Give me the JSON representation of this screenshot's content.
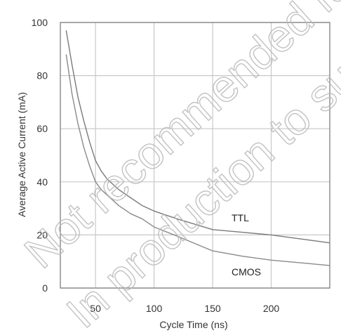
{
  "chart_data": {
    "type": "line",
    "xlabel": "Cycle Time (ns)",
    "ylabel": "Average Active Current (mA)",
    "xlim": [
      20,
      250
    ],
    "ylim": [
      0,
      100
    ],
    "x_ticks": [
      50,
      100,
      150,
      200
    ],
    "y_ticks": [
      0,
      20,
      40,
      60,
      80,
      100
    ],
    "grid": true,
    "series": [
      {
        "name": "TTL",
        "x": [
          25,
          30,
          35,
          40,
          45,
          50,
          55,
          60,
          70,
          80,
          90,
          100,
          120,
          150,
          175,
          200,
          225,
          250
        ],
        "y": [
          97,
          84,
          72,
          63,
          55,
          48,
          44,
          41,
          37,
          34,
          31,
          29,
          26,
          22,
          21,
          20,
          18.5,
          17
        ],
        "color": "#7a7a7a"
      },
      {
        "name": "CMOS",
        "x": [
          25,
          30,
          35,
          40,
          45,
          50,
          55,
          60,
          70,
          80,
          90,
          100,
          120,
          150,
          175,
          200,
          225,
          250
        ],
        "y": [
          88,
          73,
          62,
          53,
          46,
          40,
          37,
          35,
          31,
          28,
          26,
          23,
          19.5,
          14,
          12,
          10.5,
          9.5,
          8.5
        ],
        "color": "#8a8a8a"
      }
    ]
  },
  "watermark": {
    "line1": "Not recommended for",
    "line2": "In production to support"
  },
  "colors": {
    "grid": "#c8c8c8",
    "frame": "#888888",
    "watermark": "#b8b8b8"
  }
}
